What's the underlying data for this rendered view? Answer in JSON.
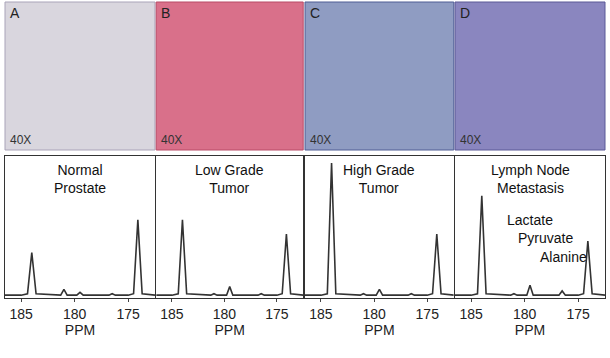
{
  "chart_data": [
    {
      "type": "line",
      "title": "Normal Prostate",
      "x_label": "PPM",
      "x": [
        186.5,
        185,
        184.4,
        184,
        183.6,
        182,
        181.3,
        181,
        180.7,
        179.8,
        179.5,
        179.2,
        178,
        176.8,
        176.5,
        176.2,
        175,
        174.5,
        174.1,
        173.7,
        172.5
      ],
      "values": [
        2,
        2,
        3,
        32,
        3,
        2,
        2,
        6,
        2,
        2,
        4,
        2,
        2,
        2,
        3,
        2,
        2,
        3,
        55,
        3,
        2
      ],
      "color": "#333333",
      "xlim": [
        186.5,
        172.5
      ],
      "xticks": [
        185,
        180,
        175
      ],
      "ylim": [
        0,
        100
      ],
      "tick_labels": "x",
      "grid": false
    },
    {
      "type": "line",
      "title": "Low Grade Tumor",
      "x_label": "PPM",
      "x": [
        186.5,
        185,
        184.4,
        184,
        183.6,
        182,
        181.3,
        181,
        180.7,
        179.8,
        179.5,
        179.2,
        178,
        176.8,
        176.5,
        176.2,
        175,
        174.5,
        174.1,
        173.7,
        172.5
      ],
      "values": [
        2,
        2,
        3,
        55,
        3,
        2,
        2,
        3,
        2,
        2,
        8,
        2,
        2,
        2,
        3,
        2,
        2,
        3,
        45,
        3,
        2
      ],
      "color": "#333333",
      "xlim": [
        186.5,
        172.5
      ],
      "xticks": [
        185,
        180,
        175
      ],
      "ylim": [
        0,
        100
      ],
      "tick_labels": "x",
      "grid": false
    },
    {
      "type": "line",
      "title": "High Grade Tumor",
      "x_label": "PPM",
      "x": [
        186.5,
        185,
        184.4,
        184,
        183.6,
        182,
        181.3,
        181,
        180.7,
        179.8,
        179.5,
        179.2,
        178,
        176.8,
        176.5,
        176.2,
        175,
        174.5,
        174.1,
        173.7,
        172.5
      ],
      "values": [
        2,
        2,
        3,
        95,
        3,
        2,
        2,
        3,
        2,
        2,
        6,
        2,
        2,
        2,
        3,
        2,
        2,
        3,
        45,
        3,
        2
      ],
      "color": "#333333",
      "xlim": [
        186.5,
        172.5
      ],
      "xticks": [
        185,
        180,
        175
      ],
      "ylim": [
        0,
        100
      ],
      "tick_labels": "x",
      "grid": false
    },
    {
      "type": "line",
      "title": "Lymph Node Metastasis",
      "x_label": "PPM",
      "annotations": [
        "Lactate",
        "Pyruvate",
        "Alanine"
      ],
      "x": [
        186.5,
        185,
        184.4,
        184,
        183.6,
        182,
        181.3,
        181,
        180.7,
        179.8,
        179.5,
        179.2,
        178,
        176.8,
        176.5,
        176.2,
        175,
        174.5,
        174.1,
        173.7,
        172.5
      ],
      "values": [
        2,
        2,
        3,
        72,
        3,
        2,
        2,
        3,
        2,
        2,
        9,
        2,
        2,
        2,
        5,
        2,
        2,
        3,
        40,
        3,
        2
      ],
      "color": "#333333",
      "xlim": [
        186.5,
        172.5
      ],
      "xticks": [
        185,
        180,
        175
      ],
      "ylim": [
        0,
        100
      ],
      "tick_labels": "x",
      "grid": false
    }
  ],
  "images": [
    {
      "label": "A",
      "magnification": "40X"
    },
    {
      "label": "B",
      "magnification": "40X"
    },
    {
      "label": "C",
      "magnification": "40X"
    },
    {
      "label": "D",
      "magnification": "40X"
    }
  ]
}
